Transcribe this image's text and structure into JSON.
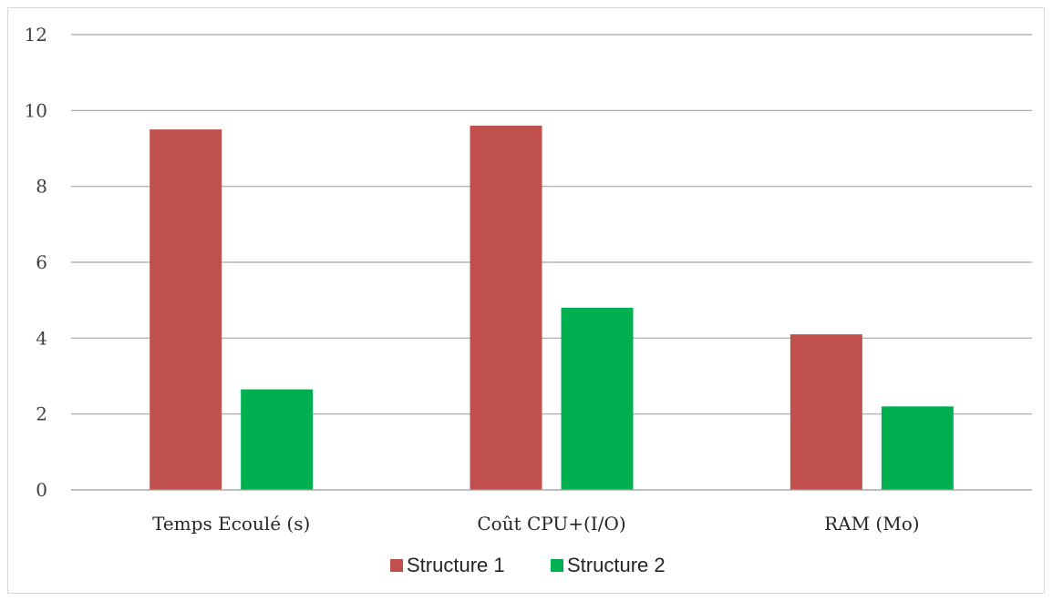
{
  "chart_data": {
    "type": "bar",
    "title": "",
    "xlabel": "",
    "ylabel": "",
    "categories": [
      "Temps Ecoulé (s)",
      "Coût CPU+(I/O)",
      "RAM (Mo)"
    ],
    "series": [
      {
        "name": "Structure 1",
        "color": "#c0504d",
        "values": [
          9.5,
          9.6,
          4.1
        ]
      },
      {
        "name": "Structure 2",
        "color": "#00b050",
        "values": [
          2.65,
          4.8,
          2.2
        ]
      }
    ],
    "ylim": [
      0,
      12
    ],
    "yticks": [
      "0",
      "2",
      "4",
      "6",
      "8",
      "10",
      "12"
    ],
    "grid": true,
    "legend": "bottom"
  }
}
